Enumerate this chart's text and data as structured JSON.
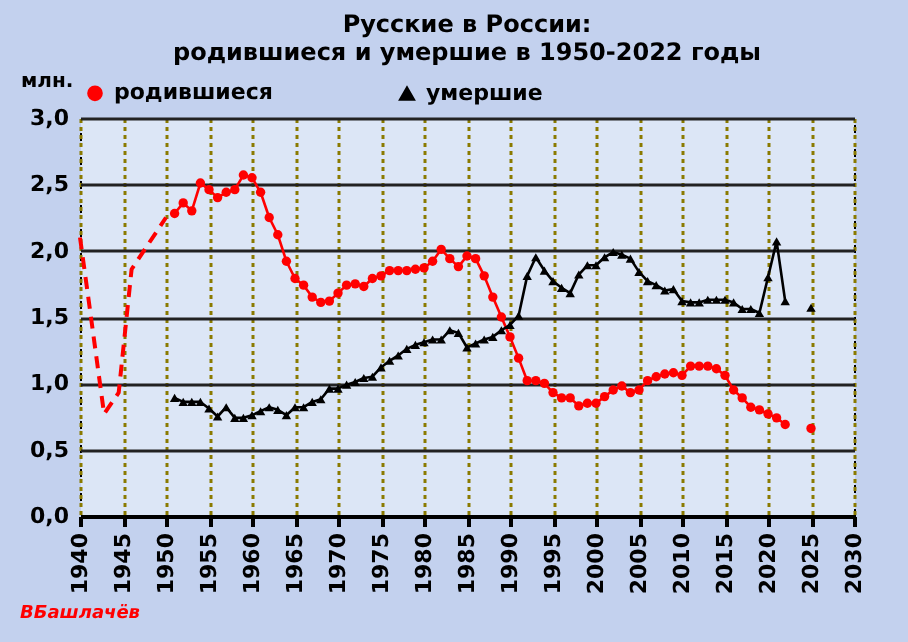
{
  "chart_data": {
    "type": "line",
    "title": [
      "Русские в России:",
      "родившиеся  и умершие  в 1950-2022  годы"
    ],
    "ylabel": "млн.",
    "xlim": [
      1940,
      2030
    ],
    "xticks": [
      1940,
      1945,
      1950,
      1955,
      1960,
      1965,
      1970,
      1975,
      1980,
      1985,
      1990,
      1995,
      2000,
      2005,
      2010,
      2015,
      2020,
      2025,
      2030
    ],
    "ylim": [
      0,
      3
    ],
    "yticks": [
      {
        "value": 0,
        "label": "0,0"
      },
      {
        "value": 0.5,
        "label": "0,5"
      },
      {
        "value": 1,
        "label": "1,0"
      },
      {
        "value": 1.5,
        "label": "1,5"
      },
      {
        "value": 2,
        "label": "2,0"
      },
      {
        "value": 2.5,
        "label": "2,5"
      },
      {
        "value": 3,
        "label": "3,0"
      }
    ],
    "grid": true,
    "legend": "top",
    "series": [
      {
        "name": "родившиеся",
        "color": "#ff0000",
        "marker": "circle",
        "line_style": "solid",
        "x": [
          1951,
          1952,
          1953,
          1954,
          1955,
          1956,
          1957,
          1958,
          1959,
          1960,
          1961,
          1962,
          1963,
          1964,
          1965,
          1966,
          1967,
          1968,
          1969,
          1970,
          1971,
          1972,
          1973,
          1974,
          1975,
          1976,
          1977,
          1978,
          1979,
          1980,
          1981,
          1982,
          1983,
          1984,
          1985,
          1986,
          1987,
          1988,
          1989,
          1990,
          1991,
          1992,
          1993,
          1994,
          1995,
          1996,
          1997,
          1998,
          1999,
          2000,
          2001,
          2002,
          2003,
          2004,
          2005,
          2006,
          2007,
          2008,
          2009,
          2010,
          2011,
          2012,
          2013,
          2014,
          2015,
          2016,
          2017,
          2018,
          2019,
          2020,
          2021,
          2022,
          2023,
          2024,
          2025
        ],
        "values": [
          2.28,
          2.36,
          2.3,
          2.51,
          2.46,
          2.4,
          2.44,
          2.46,
          2.57,
          2.55,
          2.44,
          2.25,
          2.12,
          1.92,
          1.79,
          1.74,
          1.65,
          1.61,
          1.62,
          1.68,
          1.74,
          1.75,
          1.73,
          1.79,
          1.81,
          1.85,
          1.85,
          1.85,
          1.86,
          1.87,
          1.92,
          2.01,
          1.94,
          1.88,
          1.96,
          1.94,
          1.81,
          1.65,
          1.5,
          1.35,
          1.19,
          1.02,
          1.02,
          1.0,
          0.93,
          0.89,
          0.89,
          0.83,
          0.85,
          0.85,
          0.9,
          0.95,
          0.98,
          0.93,
          0.95,
          1.02,
          1.05,
          1.07,
          1.08,
          1.06,
          1.13,
          1.13,
          1.13,
          1.11,
          1.06,
          0.95,
          0.89,
          0.82,
          0.8,
          0.77,
          0.74,
          0.69,
          null,
          null,
          0.66
        ]
      },
      {
        "color": "#ff0000",
        "marker": "none",
        "line_style": "dashed",
        "x": [
          1940,
          1941,
          1942.8,
          1944.5,
          1946,
          1950
        ],
        "values": [
          2.1,
          1.63,
          0.77,
          0.93,
          1.86,
          2.25
        ]
      },
      {
        "name": "умершие",
        "color": "#000000",
        "marker": "triangle",
        "line_style": "solid",
        "x": [
          1951,
          1952,
          1953,
          1954,
          1955,
          1956,
          1957,
          1958,
          1959,
          1960,
          1961,
          1962,
          1963,
          1964,
          1965,
          1966,
          1967,
          1968,
          1969,
          1970,
          1971,
          1972,
          1973,
          1974,
          1975,
          1976,
          1977,
          1978,
          1979,
          1980,
          1981,
          1982,
          1983,
          1984,
          1985,
          1986,
          1987,
          1988,
          1989,
          1990,
          1991,
          1992,
          1993,
          1994,
          1995,
          1996,
          1997,
          1998,
          1999,
          2000,
          2001,
          2002,
          2003,
          2004,
          2005,
          2006,
          2007,
          2008,
          2009,
          2010,
          2011,
          2012,
          2013,
          2014,
          2015,
          2016,
          2017,
          2018,
          2019,
          2020,
          2021,
          2022,
          2023,
          2024,
          2025
        ],
        "values": [
          0.89,
          0.86,
          0.86,
          0.86,
          0.81,
          0.75,
          0.82,
          0.74,
          0.74,
          0.76,
          0.79,
          0.82,
          0.8,
          0.76,
          0.82,
          0.82,
          0.86,
          0.88,
          0.96,
          0.96,
          0.99,
          1.01,
          1.04,
          1.05,
          1.12,
          1.17,
          1.21,
          1.26,
          1.29,
          1.31,
          1.33,
          1.33,
          1.4,
          1.38,
          1.27,
          1.3,
          1.33,
          1.35,
          1.4,
          1.44,
          1.51,
          1.81,
          1.95,
          1.85,
          1.77,
          1.72,
          1.68,
          1.82,
          1.89,
          1.89,
          1.95,
          1.99,
          1.97,
          1.94,
          1.84,
          1.77,
          1.74,
          1.7,
          1.71,
          1.62,
          1.61,
          1.61,
          1.63,
          1.63,
          1.63,
          1.61,
          1.56,
          1.56,
          1.53,
          1.8,
          2.07,
          1.62,
          null,
          null,
          1.57
        ]
      }
    ],
    "annotations": [
      "ВБашлачёв"
    ]
  }
}
